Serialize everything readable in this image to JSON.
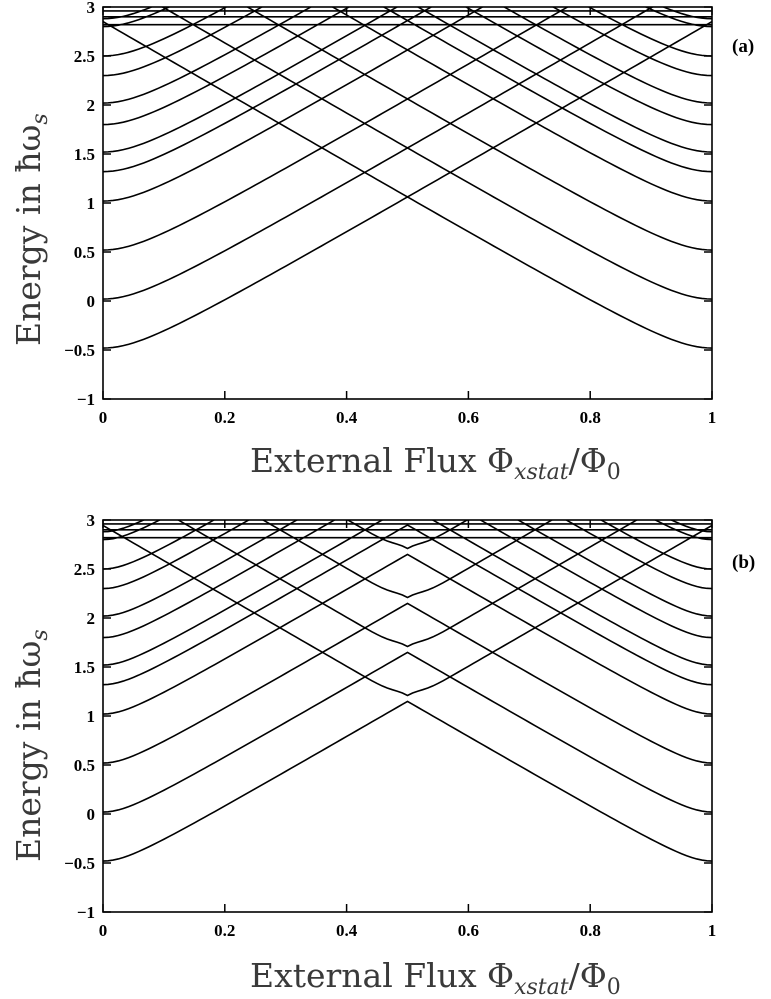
{
  "chart_data": [
    {
      "type": "line",
      "panel_label": "(a)",
      "xlabel": "External Flux Φ_xstat/Φ_0",
      "xlabel_main": "External Flux Φ",
      "xlabel_sub1": "xstat",
      "xlabel_slash": "/Φ",
      "xlabel_sub2": "0",
      "ylabel": "Energy in ħω_s",
      "ylabel_main": "Energy in ħω",
      "ylabel_sub": "s",
      "xlim": [
        0,
        1
      ],
      "ylim": [
        -1,
        3
      ],
      "xticks": [
        "0",
        "0.2",
        "0.4",
        "0.6",
        "0.8",
        "1"
      ],
      "yticks": [
        "−1",
        "−0.5",
        "0",
        "0.5",
        "1",
        "1.5",
        "2",
        "2.5",
        "3"
      ],
      "grid": false,
      "levels_at_x0": [
        -0.48,
        0.02,
        0.52,
        1.02,
        1.32,
        1.52,
        1.8,
        2.02,
        2.3,
        2.5,
        2.8,
        2.88
      ],
      "slope": 3.6,
      "gap_at_half": 0.28,
      "series": [
        {
          "points": [
            [
              0,
              -0.48
            ],
            [
              0.1,
              -0.34
            ],
            [
              0.2,
              -0.08
            ],
            [
              0.3,
              0.3
            ],
            [
              0.4,
              0.82
            ],
            [
              0.5,
              1.32
            ],
            [
              0.6,
              0.82
            ],
            [
              0.7,
              0.3
            ],
            [
              0.8,
              -0.08
            ],
            [
              0.9,
              -0.34
            ],
            [
              1,
              -0.48
            ]
          ]
        },
        {
          "points": [
            [
              0,
              0.02
            ],
            [
              0.1,
              0.16
            ],
            [
              0.2,
              0.42
            ],
            [
              0.3,
              0.8
            ],
            [
              0.4,
              1.32
            ],
            [
              0.5,
              1.5
            ],
            [
              0.6,
              1.32
            ],
            [
              0.7,
              0.8
            ],
            [
              0.8,
              0.42
            ],
            [
              0.9,
              0.16
            ],
            [
              1,
              0.02
            ]
          ]
        },
        {
          "points": [
            [
              0,
              0.52
            ],
            [
              0.1,
              0.66
            ],
            [
              0.2,
              0.92
            ],
            [
              0.3,
              1.3
            ],
            [
              0.4,
              1.7
            ],
            [
              0.5,
              1.82
            ],
            [
              0.6,
              1.7
            ],
            [
              0.7,
              1.3
            ],
            [
              0.8,
              0.92
            ],
            [
              0.9,
              0.66
            ],
            [
              1,
              0.52
            ]
          ]
        },
        {
          "points": [
            [
              0,
              1.02
            ],
            [
              0.2,
              1.42
            ],
            [
              0.4,
              2.0
            ],
            [
              0.5,
              2.0
            ],
            [
              0.6,
              2.0
            ],
            [
              0.8,
              1.42
            ],
            [
              1,
              1.02
            ]
          ]
        },
        {
          "points": [
            [
              0,
              2.8
            ],
            [
              0.5,
              2.96
            ],
            [
              1,
              2.8
            ]
          ]
        }
      ]
    },
    {
      "type": "line",
      "panel_label": "(b)",
      "xlabel": "External Flux Φ_xstat/Φ_0",
      "xlabel_main": "External Flux Φ",
      "xlabel_sub1": "xstat",
      "xlabel_slash": "/Φ",
      "xlabel_sub2": "0",
      "ylabel": "Energy in ħω_s",
      "ylabel_main": "Energy in ħω",
      "ylabel_sub": "s",
      "xlim": [
        0,
        1
      ],
      "ylim": [
        -1,
        3
      ],
      "xticks": [
        "0",
        "0.2",
        "0.4",
        "0.6",
        "0.8",
        "1"
      ],
      "yticks": [
        "−1",
        "−0.5",
        "0",
        "0.5",
        "1",
        "1.5",
        "2",
        "2.5",
        "3"
      ],
      "grid": false,
      "levels_at_x0": [
        -0.48,
        0.02,
        0.52,
        1.02,
        1.32,
        1.52,
        1.8,
        2.02,
        2.3,
        2.5,
        2.8,
        2.88
      ],
      "slope": 3.6,
      "gap_at_half": 0.18,
      "series": [
        {
          "points": [
            [
              0,
              -0.48
            ],
            [
              0.1,
              -0.34
            ],
            [
              0.2,
              -0.08
            ],
            [
              0.3,
              0.3
            ],
            [
              0.4,
              0.82
            ],
            [
              0.5,
              1.32
            ],
            [
              0.6,
              0.82
            ],
            [
              0.7,
              0.3
            ],
            [
              0.8,
              -0.08
            ],
            [
              0.9,
              -0.34
            ],
            [
              1,
              -0.48
            ]
          ]
        },
        {
          "points": [
            [
              0,
              0.02
            ],
            [
              0.2,
              0.42
            ],
            [
              0.4,
              1.32
            ],
            [
              0.465,
              1.58
            ],
            [
              0.5,
              1.44
            ],
            [
              0.535,
              1.58
            ],
            [
              0.6,
              1.32
            ],
            [
              0.8,
              0.42
            ],
            [
              1,
              0.02
            ]
          ]
        },
        {
          "points": [
            [
              0,
              0.52
            ],
            [
              0.2,
              0.92
            ],
            [
              0.4,
              1.7
            ],
            [
              0.5,
              1.82
            ],
            [
              0.6,
              1.7
            ],
            [
              0.8,
              0.92
            ],
            [
              1,
              0.52
            ]
          ]
        },
        {
          "points": [
            [
              0,
              1.02
            ],
            [
              0.2,
              1.42
            ],
            [
              0.38,
              2.0
            ],
            [
              0.5,
              2.12
            ],
            [
              0.62,
              2.0
            ],
            [
              0.8,
              1.42
            ],
            [
              1,
              1.02
            ]
          ]
        },
        {
          "points": [
            [
              0,
              2.8
            ],
            [
              0.5,
              2.96
            ],
            [
              1,
              2.8
            ]
          ]
        }
      ]
    }
  ]
}
